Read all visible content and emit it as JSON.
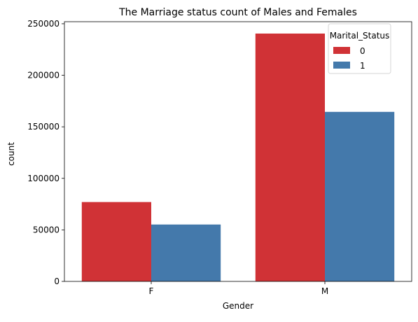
{
  "chart_data": {
    "type": "bar",
    "title": "The Marriage status count of Males and Females",
    "xlabel": "Gender",
    "ylabel": "count",
    "categories": [
      "F",
      "M"
    ],
    "ylim": [
      0,
      252000
    ],
    "yticks": [
      0,
      50000,
      100000,
      150000,
      200000,
      250000
    ],
    "ytick_labels": [
      "0",
      "50000",
      "100000",
      "150000",
      "200000",
      "250000"
    ],
    "legend": {
      "title": "Marital_Status",
      "position": "top-right"
    },
    "series": [
      {
        "name": "0",
        "color": "#d03236",
        "values": [
          77000,
          240500
        ]
      },
      {
        "name": "1",
        "color": "#4479ab",
        "values": [
          55200,
          164500
        ]
      }
    ]
  }
}
